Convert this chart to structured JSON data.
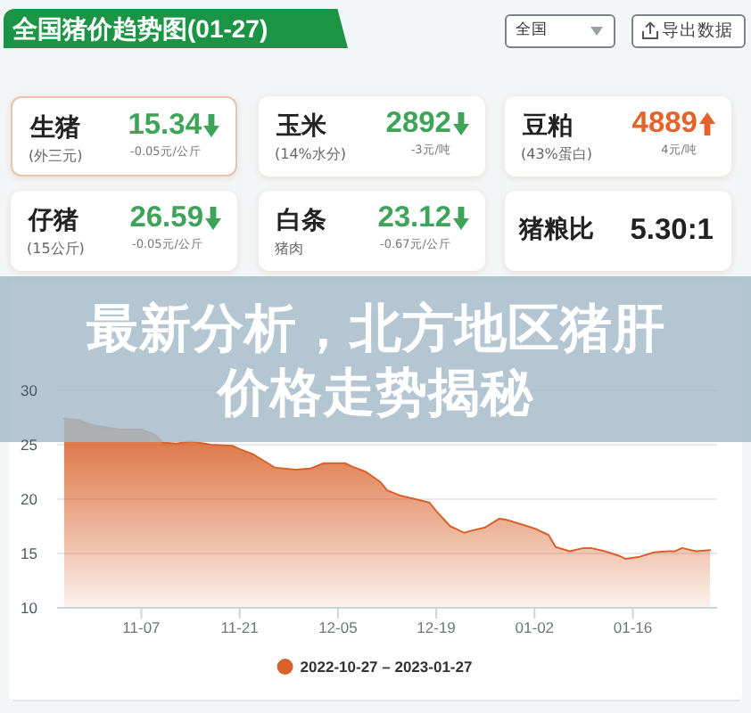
{
  "chart_data": [
    {
      "type": "other",
      "title": "全国猪价趋势图(01-27)",
      "annotations": [
        "全国",
        "导出数据",
        "生猪",
        "(外三元)",
        "15.34",
        "-0.05元/公斤",
        "玉米",
        "(14%水分)",
        "2892",
        "-3元/吨",
        "豆粕",
        "(43%蛋白)",
        "4889",
        "4元/吨",
        "仔猪",
        "(15公斤)",
        "26.59",
        "-0.05元/公斤",
        "白条",
        "猪肉",
        "23.12",
        "-0.67元/公斤",
        "猪粮比",
        "5.30:1"
      ]
    },
    {
      "type": "other",
      "title": "最新分析，北方地区猪肝价格走势揭秘"
    },
    {
      "type": "area",
      "x": [
        "2022-10-27",
        "2022-10-29",
        "2022-10-31",
        "2022-11-02",
        "2022-11-04",
        "2022-11-07",
        "2022-11-09",
        "2022-11-10",
        "2022-11-12",
        "2022-11-14",
        "2022-11-15",
        "2022-11-17",
        "2022-11-20",
        "2022-11-21",
        "2022-11-23",
        "2022-11-25",
        "2022-11-26",
        "2022-11-29",
        "2022-12-01",
        "2022-12-03",
        "2022-12-06",
        "2022-12-07",
        "2022-12-09",
        "2022-12-11",
        "2022-12-12",
        "2022-12-14",
        "2022-12-16",
        "2022-12-18",
        "2022-12-19",
        "2022-12-21",
        "2022-12-23",
        "2022-12-24",
        "2022-12-26",
        "2022-12-28",
        "2022-12-29",
        "2022-12-31",
        "2023-01-02",
        "2023-01-04",
        "2023-01-05",
        "2023-01-07",
        "2023-01-09",
        "2023-01-10",
        "2023-01-12",
        "2023-01-14",
        "2023-01-15",
        "2023-01-17",
        "2023-01-19",
        "2023-01-21",
        "2023-01-22",
        "2023-01-23",
        "2023-01-25",
        "2023-01-27"
      ],
      "series": [
        {
          "name": "2022-10-27 – 2023-01-27",
          "color": "#d9622b",
          "values": [
            27.4,
            27.3,
            26.8,
            26.6,
            26.4,
            26.4,
            25.9,
            25.2,
            25.1,
            25.3,
            25.2,
            25.0,
            24.9,
            24.6,
            24.1,
            23.3,
            22.9,
            22.7,
            22.8,
            23.3,
            23.3,
            23.0,
            22.5,
            21.6,
            20.8,
            20.3,
            20.0,
            19.7,
            18.9,
            17.5,
            16.9,
            17.1,
            17.4,
            18.2,
            18.1,
            17.7,
            17.3,
            16.7,
            15.6,
            15.2,
            15.5,
            15.5,
            15.2,
            14.8,
            14.5,
            14.7,
            15.1,
            15.2,
            15.2,
            15.5,
            15.2,
            15.3
          ]
        }
      ],
      "xlim": [
        "2022-10-26",
        "2023-01-28"
      ],
      "xticks": [
        {
          "value": "2022-11-07",
          "label": "11-07"
        },
        {
          "value": "2022-11-21",
          "label": "11-21"
        },
        {
          "value": "2022-12-05",
          "label": "12-05"
        },
        {
          "value": "2022-12-19",
          "label": "12-19"
        },
        {
          "value": "2023-01-02",
          "label": "01-02"
        },
        {
          "value": "2023-01-16",
          "label": "01-16"
        }
      ],
      "ylim": [
        10,
        30
      ],
      "yticks": [
        10,
        15,
        20,
        25,
        30
      ],
      "grid": "y",
      "legend": "bottom"
    }
  ]
}
